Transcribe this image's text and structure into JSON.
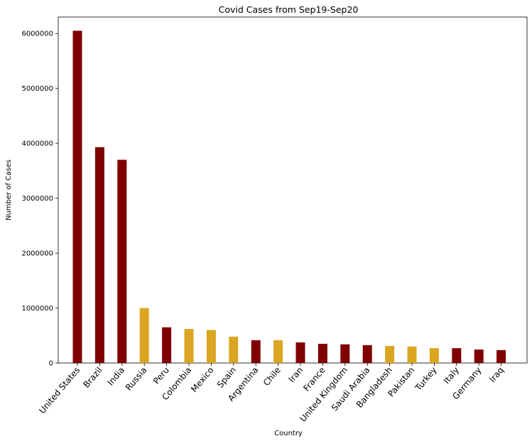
{
  "chart_data": {
    "type": "bar",
    "title": "Covid Cases from Sep19-Sep20",
    "xlabel": "Country",
    "ylabel": "Number of Cases",
    "ylim": [
      0,
      6300000
    ],
    "yticks": [
      0,
      1000000,
      2000000,
      3000000,
      4000000,
      5000000,
      6000000
    ],
    "grid": false,
    "categories": [
      "United States",
      "Brazil",
      "India",
      "Russia",
      "Peru",
      "Colombia",
      "Mexico",
      "Spain",
      "Argentina",
      "Chile",
      "Iran",
      "France",
      "United Kingdom",
      "Saudi Arabia",
      "Bangladesh",
      "Pakistan",
      "Turkey",
      "Italy",
      "Germany",
      "Iraq"
    ],
    "values": [
      6050000,
      3930000,
      3700000,
      1000000,
      650000,
      620000,
      600000,
      480000,
      415000,
      415000,
      375000,
      350000,
      340000,
      325000,
      310000,
      300000,
      270000,
      270000,
      245000,
      235000
    ],
    "colors": [
      "#800000",
      "#800000",
      "#800000",
      "#DAA520",
      "#800000",
      "#DAA520",
      "#DAA520",
      "#DAA520",
      "#800000",
      "#DAA520",
      "#800000",
      "#800000",
      "#800000",
      "#800000",
      "#DAA520",
      "#DAA520",
      "#DAA520",
      "#800000",
      "#800000",
      "#800000"
    ]
  }
}
